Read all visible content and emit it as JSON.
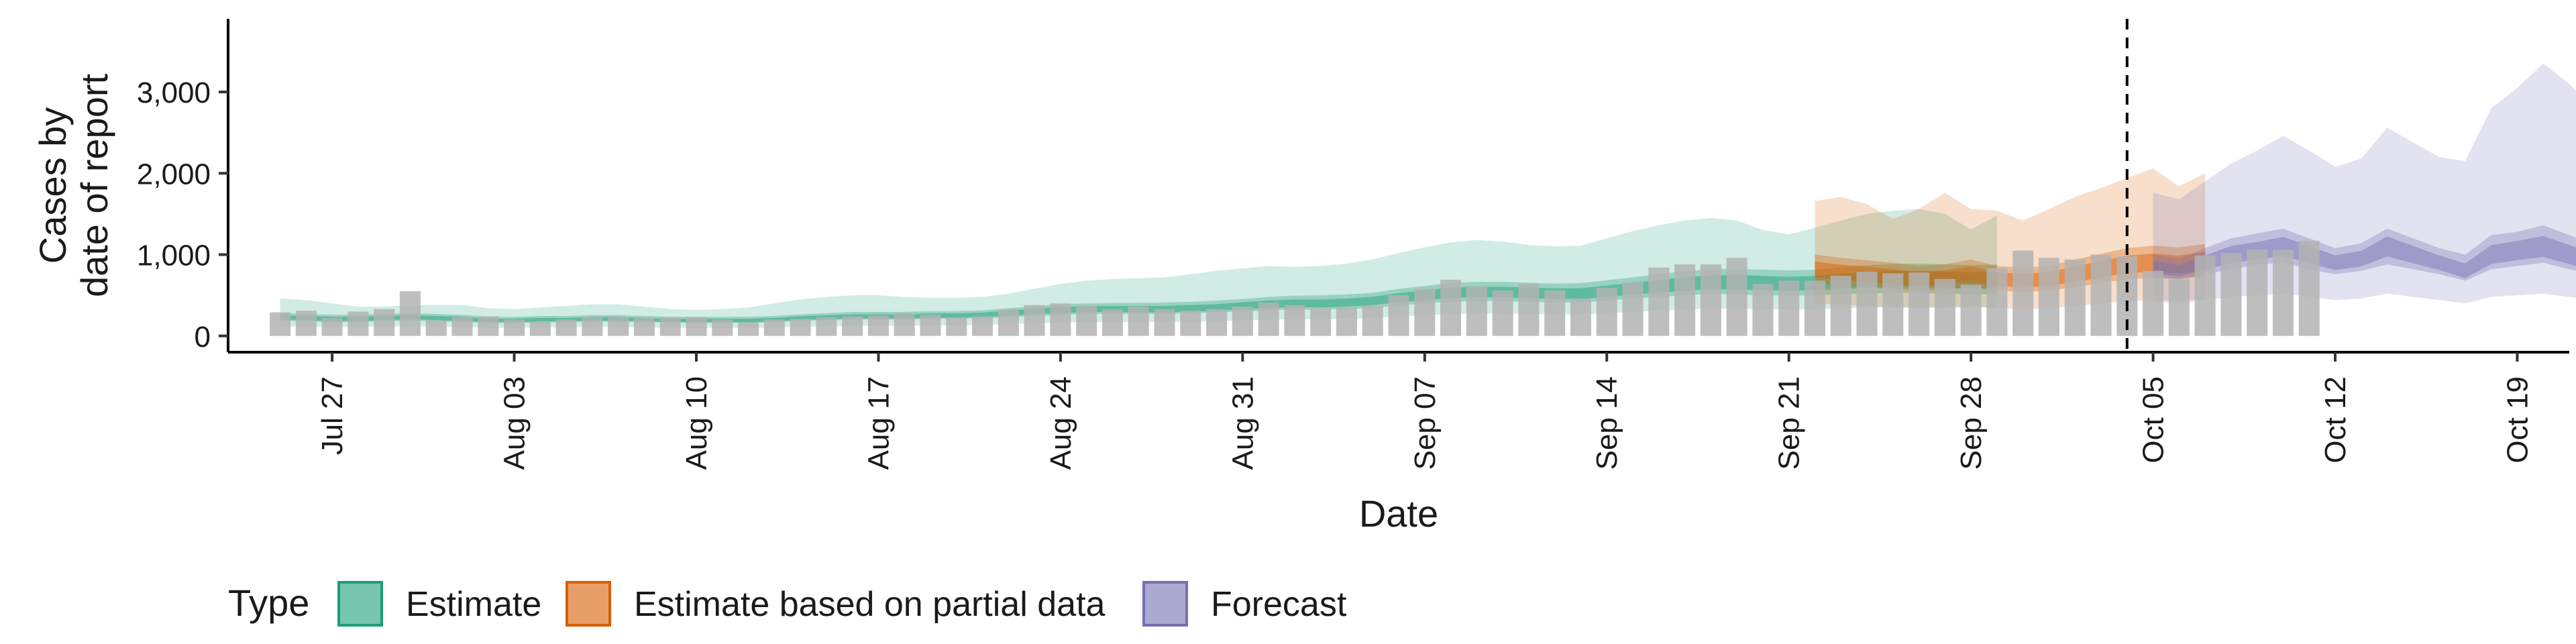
{
  "chart_data": {
    "type": "area",
    "title": "",
    "xlabel": "Date",
    "ylabel": "Cases by\ndate of report",
    "x_start": "2020-07-23",
    "x_end": "2020-10-21",
    "dates_start": "2020-07-25",
    "ylim": [
      -200,
      3900
    ],
    "yticks": [
      0,
      1000,
      2000,
      3000
    ],
    "ytick_labels": [
      "0",
      "1,000",
      "2,000",
      "3,000"
    ],
    "xticks": [
      "2020-07-27",
      "2020-08-03",
      "2020-08-10",
      "2020-08-17",
      "2020-08-24",
      "2020-08-31",
      "2020-09-07",
      "2020-09-14",
      "2020-09-21",
      "2020-09-28",
      "2020-10-05",
      "2020-10-12",
      "2020-10-19"
    ],
    "xtick_labels": [
      "Jul 27",
      "Aug 03",
      "Aug 10",
      "Aug 17",
      "Aug 24",
      "Aug 31",
      "Sep 07",
      "Sep 14",
      "Sep 21",
      "Sep 28",
      "Oct 05",
      "Oct 12",
      "Oct 19"
    ],
    "report_date": "2020-10-04",
    "grid": false,
    "legend_position": "bottom",
    "legend": {
      "title": "Type",
      "items": [
        {
          "name": "Estimate",
          "color": "#1b9e77"
        },
        {
          "name": "Estimate based on partial data",
          "color": "#d95f02"
        },
        {
          "name": "Forecast",
          "color": "#7570b3"
        }
      ]
    },
    "bar_color": "#b3b3b3",
    "observed_cases": [
      290,
      310,
      220,
      300,
      330,
      550,
      190,
      230,
      240,
      200,
      170,
      200,
      230,
      230,
      220,
      230,
      230,
      200,
      170,
      200,
      210,
      230,
      240,
      250,
      280,
      260,
      230,
      240,
      330,
      380,
      400,
      370,
      330,
      360,
      330,
      310,
      330,
      360,
      410,
      380,
      340,
      350,
      370,
      500,
      580,
      690,
      610,
      560,
      640,
      560,
      460,
      590,
      660,
      840,
      880,
      880,
      960,
      640,
      680,
      680,
      740,
      790,
      770,
      780,
      700,
      630,
      830,
      1050,
      960,
      940,
      1000,
      980,
      800,
      700,
      990,
      1020,
      1060,
      1060,
      1170
    ],
    "estimate": {
      "dates_start": "2020-07-25",
      "median": [
        230,
        220,
        210,
        210,
        220,
        230,
        220,
        210,
        190,
        190,
        200,
        200,
        210,
        210,
        200,
        190,
        190,
        190,
        190,
        200,
        220,
        230,
        240,
        240,
        240,
        250,
        250,
        260,
        280,
        300,
        320,
        330,
        330,
        330,
        330,
        340,
        350,
        370,
        390,
        400,
        400,
        410,
        430,
        470,
        500,
        530,
        540,
        540,
        530,
        520,
        520,
        550,
        580,
        610,
        640,
        660,
        660,
        650,
        640,
        650,
        670,
        690,
        700,
        700,
        690,
        680,
        690
      ],
      "lower_50": [
        190,
        180,
        170,
        170,
        180,
        190,
        180,
        170,
        160,
        160,
        165,
        170,
        175,
        175,
        170,
        165,
        160,
        160,
        160,
        170,
        185,
        195,
        200,
        200,
        200,
        210,
        210,
        215,
        230,
        245,
        260,
        270,
        270,
        270,
        270,
        280,
        290,
        300,
        315,
        325,
        325,
        330,
        345,
        375,
        400,
        420,
        430,
        430,
        420,
        410,
        410,
        435,
        460,
        480,
        500,
        515,
        510,
        500,
        495,
        500,
        510,
        525,
        530,
        530,
        520,
        510,
        515
      ],
      "upper_50": [
        280,
        270,
        260,
        260,
        270,
        280,
        270,
        260,
        235,
        235,
        245,
        245,
        255,
        255,
        245,
        235,
        235,
        235,
        235,
        245,
        265,
        280,
        295,
        295,
        295,
        305,
        305,
        315,
        340,
        365,
        390,
        400,
        405,
        405,
        410,
        420,
        435,
        455,
        480,
        495,
        500,
        510,
        530,
        580,
        615,
        650,
        665,
        665,
        655,
        645,
        650,
        685,
        720,
        760,
        795,
        820,
        825,
        815,
        805,
        815,
        840,
        870,
        885,
        890,
        880,
        870,
        880
      ],
      "lower_90": [
        120,
        115,
        110,
        110,
        115,
        120,
        115,
        110,
        100,
        100,
        105,
        105,
        110,
        110,
        105,
        100,
        100,
        100,
        100,
        105,
        115,
        120,
        125,
        125,
        125,
        130,
        130,
        135,
        145,
        155,
        165,
        170,
        170,
        170,
        170,
        175,
        180,
        190,
        200,
        205,
        205,
        210,
        220,
        240,
        255,
        270,
        275,
        275,
        270,
        265,
        265,
        280,
        295,
        310,
        325,
        335,
        335,
        330,
        325,
        330,
        340,
        350,
        355,
        355,
        350,
        345,
        350
      ],
      "upper_90": [
        460,
        440,
        400,
        360,
        360,
        380,
        380,
        380,
        340,
        330,
        350,
        370,
        390,
        390,
        360,
        330,
        320,
        330,
        350,
        400,
        450,
        480,
        500,
        500,
        480,
        470,
        470,
        480,
        520,
        580,
        640,
        680,
        700,
        710,
        720,
        760,
        800,
        830,
        860,
        850,
        860,
        890,
        940,
        1020,
        1090,
        1150,
        1180,
        1160,
        1120,
        1100,
        1110,
        1200,
        1290,
        1360,
        1420,
        1450,
        1420,
        1300,
        1250,
        1330,
        1420,
        1500,
        1540,
        1560,
        1500,
        1310,
        1480
      ]
    },
    "partial": {
      "dates_start": "2020-09-22",
      "median": [
        820,
        780,
        760,
        730,
        700,
        720,
        760,
        700,
        680,
        700,
        760,
        820,
        880,
        900,
        880,
        920
      ],
      "lower_50": [
        660,
        620,
        600,
        580,
        560,
        570,
        600,
        560,
        540,
        560,
        600,
        650,
        700,
        715,
        700,
        730
      ],
      "upper_50": [
        1000,
        960,
        930,
        900,
        860,
        880,
        940,
        860,
        840,
        860,
        940,
        1010,
        1080,
        1110,
        1090,
        1130
      ],
      "lower_90": [
        400,
        380,
        370,
        350,
        340,
        350,
        370,
        340,
        330,
        340,
        370,
        400,
        430,
        440,
        430,
        450
      ],
      "upper_90": [
        1660,
        1710,
        1620,
        1440,
        1560,
        1760,
        1560,
        1540,
        1420,
        1560,
        1710,
        1820,
        1940,
        2060,
        1840,
        2000
      ]
    },
    "forecast": {
      "dates_start": "2020-10-05",
      "median": [
        850,
        800,
        900,
        1000,
        1050,
        1100,
        1000,
        900,
        950,
        1100,
        1000,
        900,
        800,
        1000,
        1050,
        1100,
        1000,
        900,
        1100
      ],
      "lower_50": [
        720,
        700,
        760,
        820,
        880,
        900,
        820,
        760,
        800,
        880,
        820,
        760,
        680,
        820,
        860,
        900,
        820,
        760,
        880
      ],
      "upper_50": [
        1000,
        950,
        1080,
        1200,
        1260,
        1320,
        1200,
        1080,
        1140,
        1320,
        1200,
        1080,
        1000,
        1240,
        1280,
        1360,
        1240,
        1120,
        1340
      ],
      "lower_90": [
        420,
        400,
        440,
        480,
        500,
        520,
        480,
        440,
        460,
        520,
        480,
        440,
        400,
        480,
        500,
        520,
        480,
        440,
        500
      ],
      "upper_90": [
        1760,
        1680,
        1900,
        2120,
        2280,
        2460,
        2280,
        2080,
        2180,
        2560,
        2380,
        2200,
        2150,
        2800,
        3050,
        3350,
        3100,
        2750,
        3300
      ]
    }
  }
}
